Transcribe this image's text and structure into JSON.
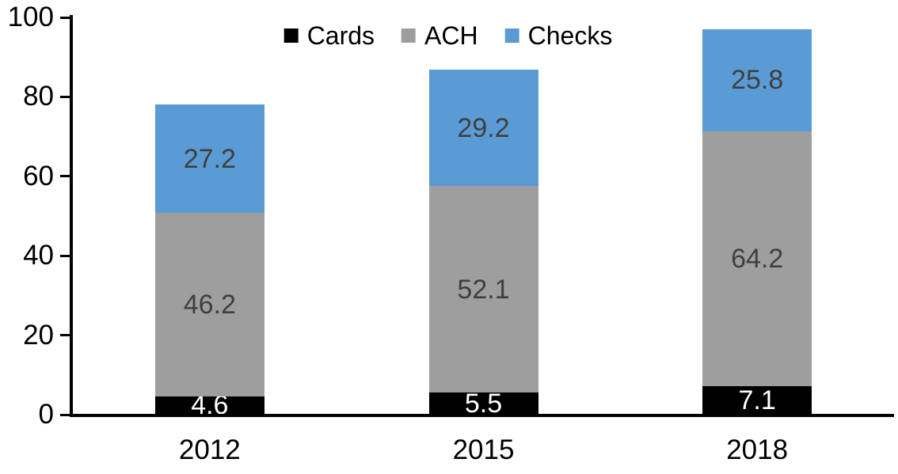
{
  "chart_data": {
    "type": "bar",
    "stacked": true,
    "title": "",
    "categories": [
      "2012",
      "2015",
      "2018"
    ],
    "series": [
      {
        "name": "Cards",
        "values": [
          4.6,
          5.5,
          7.1
        ],
        "color": "#000000",
        "label_color": "#FFFFFF"
      },
      {
        "name": "ACH",
        "values": [
          46.2,
          52.1,
          64.2
        ],
        "color": "#9E9E9E",
        "label_color": "#3F3F3F"
      },
      {
        "name": "Checks",
        "values": [
          27.2,
          29.2,
          25.8
        ],
        "color": "#5B9BD5",
        "label_color": "#3F3F3F"
      }
    ],
    "totals": [
      78.0,
      86.8,
      97.1
    ],
    "ylim": [
      0,
      100
    ],
    "y_ticks": [
      0,
      20,
      40,
      60,
      80,
      100
    ],
    "grid": false,
    "legend_position": "top-center",
    "legend_labels": [
      "Cards",
      "ACH",
      "Checks"
    ],
    "axis_color": "#000000",
    "background_color": "#FFFFFF"
  }
}
